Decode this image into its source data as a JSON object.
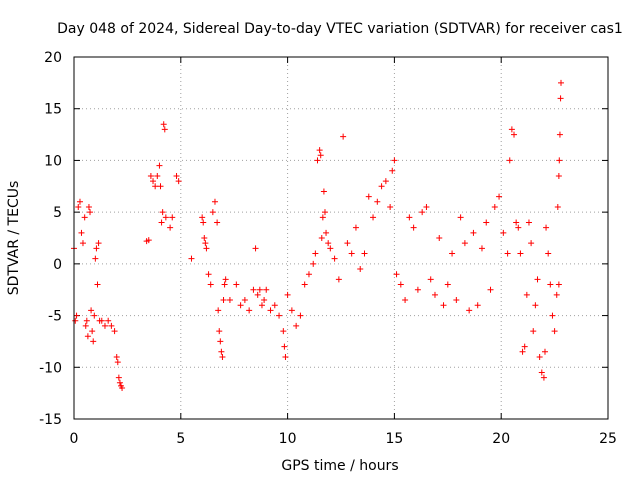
{
  "chart_data": {
    "type": "scatter",
    "title": "Day 048 of 2024, Sidereal Day-to-day VTEC variation (SDTVAR) for receiver cas1",
    "xlabel": "GPS time / hours",
    "ylabel": "SDTVAR / TECUs",
    "xlim": [
      0,
      25
    ],
    "ylim": [
      -15,
      20
    ],
    "xticks": [
      0,
      5,
      10,
      15,
      20,
      25
    ],
    "yticks": [
      -15,
      -10,
      -5,
      0,
      5,
      10,
      15,
      20
    ],
    "xtick_labels": [
      "0",
      "5",
      "10",
      "15",
      "20",
      "25"
    ],
    "ytick_labels": [
      "-15",
      "-10",
      "-5",
      "0",
      "5",
      "10",
      "15",
      "20"
    ],
    "grid": true,
    "marker": "+",
    "color": "#ff0000",
    "segments": [
      {
        "x": [
          0.0,
          0.06,
          0.12,
          0.2,
          0.28,
          0.35,
          0.42,
          0.5,
          0.55,
          0.6,
          0.65,
          0.7,
          0.75,
          0.8,
          0.85,
          0.9,
          0.95,
          1.0,
          1.05,
          1.1,
          1.15,
          1.2
        ],
        "y": [
          1.5,
          -5.5,
          -5.0,
          5.5,
          6.0,
          3.0,
          2.0,
          4.5,
          -6.0,
          -5.5,
          -7.0,
          5.5,
          5.0,
          -4.5,
          -6.5,
          -7.5,
          -5.0,
          0.5,
          1.5,
          -2.0,
          2.0,
          -5.5
        ]
      },
      {
        "x": [
          1.3,
          1.45,
          1.6,
          1.75,
          1.9,
          2.0,
          2.05,
          2.1,
          2.15,
          2.2,
          2.25
        ],
        "y": [
          -5.5,
          -6.0,
          -5.5,
          -6.0,
          -6.5,
          -9.0,
          -9.5,
          -11.0,
          -11.5,
          -11.8,
          -12.0
        ]
      },
      {
        "x": [
          3.4,
          3.5,
          3.6,
          3.7,
          3.8,
          3.9,
          4.0,
          4.05,
          4.1,
          4.15,
          4.2,
          4.25,
          4.3,
          4.5,
          4.6,
          4.8,
          4.9
        ],
        "y": [
          2.2,
          2.3,
          8.5,
          8.0,
          7.5,
          8.5,
          9.5,
          7.5,
          4.0,
          5.0,
          13.5,
          13.0,
          4.5,
          3.5,
          4.5,
          8.5,
          8.0
        ]
      },
      {
        "x": [
          5.5,
          6.0,
          6.05,
          6.1,
          6.15,
          6.2,
          6.3,
          6.4,
          6.5,
          6.6,
          6.7,
          6.75,
          6.8,
          6.85,
          6.9,
          6.95,
          7.0,
          7.05,
          7.1
        ],
        "y": [
          0.5,
          4.5,
          4.0,
          2.5,
          2.0,
          1.5,
          -1.0,
          -2.0,
          5.0,
          6.0,
          4.0,
          -4.5,
          -6.5,
          -7.5,
          -8.5,
          -9.0,
          -3.5,
          -2.0,
          -1.5
        ]
      },
      {
        "x": [
          7.3,
          7.6,
          7.8,
          8.0,
          8.2,
          8.4,
          8.5,
          8.6,
          8.7,
          8.8,
          8.9,
          9.0,
          9.2,
          9.4,
          9.6,
          9.8,
          9.85,
          9.9,
          10.0,
          10.2,
          10.4,
          10.6,
          10.8,
          11.0,
          11.2
        ],
        "y": [
          -3.5,
          -2.0,
          -4.0,
          -3.5,
          -4.5,
          -2.5,
          1.5,
          -3.0,
          -2.5,
          -4.0,
          -3.5,
          -2.5,
          -4.5,
          -4.0,
          -5.0,
          -6.5,
          -8.0,
          -9.0,
          -3.0,
          -4.5,
          -6.0,
          -5.0,
          -2.0,
          -1.0,
          0.0
        ]
      },
      {
        "x": [
          11.3,
          11.4,
          11.5,
          11.55,
          11.6,
          11.65,
          11.7,
          11.75,
          11.8,
          11.9,
          12.0,
          12.2,
          12.4,
          12.6,
          12.8,
          13.0,
          13.2,
          13.4,
          13.6,
          13.8,
          14.0,
          14.2,
          14.4,
          14.6,
          14.8,
          14.9,
          15.0
        ],
        "y": [
          1.0,
          10.0,
          11.0,
          10.5,
          2.5,
          4.5,
          7.0,
          5.0,
          3.0,
          2.0,
          1.5,
          0.5,
          -1.5,
          12.3,
          2.0,
          1.0,
          3.5,
          -0.5,
          1.0,
          6.5,
          4.5,
          6.0,
          7.5,
          8.0,
          5.5,
          9.0,
          10.0
        ]
      },
      {
        "x": [
          15.1,
          15.3,
          15.5,
          15.7,
          15.9,
          16.1,
          16.3,
          16.5,
          16.7,
          16.9,
          17.1,
          17.3,
          17.5,
          17.7,
          17.9,
          18.1,
          18.3,
          18.5,
          18.7,
          18.9,
          19.1,
          19.3,
          19.5,
          19.7,
          19.9,
          20.1,
          20.3,
          20.4,
          20.5,
          20.6,
          20.7
        ],
        "y": [
          -1.0,
          -2.0,
          -3.5,
          4.5,
          3.5,
          -2.5,
          5.0,
          5.5,
          -1.5,
          -3.0,
          2.5,
          -4.0,
          -2.0,
          1.0,
          -3.5,
          4.5,
          2.0,
          -4.5,
          3.0,
          -4.0,
          1.5,
          4.0,
          -2.5,
          5.5,
          6.5,
          3.0,
          1.0,
          10.0,
          13.0,
          12.5,
          4.0
        ]
      },
      {
        "x": [
          20.8,
          20.9,
          21.0,
          21.1,
          21.2,
          21.3,
          21.4,
          21.5,
          21.6,
          21.7,
          21.8,
          21.9,
          22.0,
          22.05,
          22.1,
          22.2,
          22.3,
          22.4,
          22.5,
          22.6,
          22.7
        ],
        "y": [
          3.5,
          1.0,
          -8.5,
          -8.0,
          -3.0,
          4.0,
          2.0,
          -6.5,
          -4.0,
          -1.5,
          -9.0,
          -10.5,
          -11.0,
          -8.5,
          3.5,
          1.0,
          -2.0,
          -5.0,
          -6.5,
          -3.0,
          -2.0
        ]
      },
      {
        "x": [
          22.65,
          22.7,
          22.72,
          22.75,
          22.78,
          22.8
        ],
        "y": [
          5.5,
          8.5,
          10.0,
          12.5,
          16.0,
          17.5
        ]
      }
    ]
  }
}
